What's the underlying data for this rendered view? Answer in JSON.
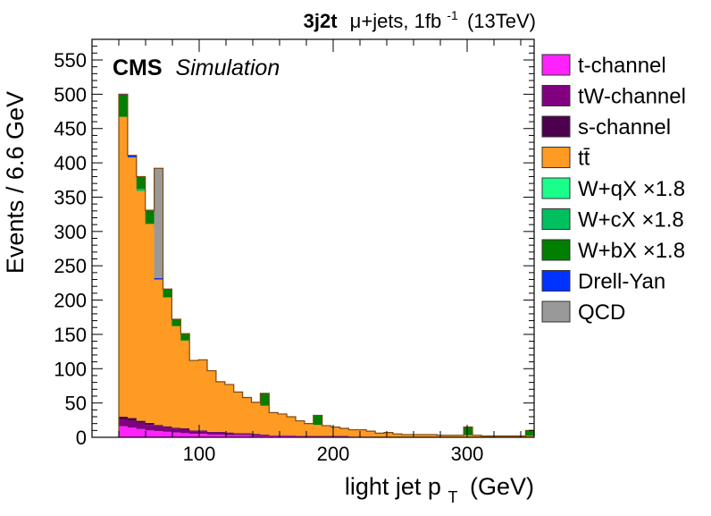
{
  "header": {
    "tag": "3j2t",
    "channel": "μ+jets, 1fb",
    "lumi_exp": "-1",
    "energy": "(13TeV)"
  },
  "cms": {
    "main": "CMS",
    "sub": "Simulation"
  },
  "chart_data": {
    "type": "bar",
    "stacked": true,
    "bin_width": 6.6,
    "bins": [
      [
        40,
        46.6
      ],
      [
        46.6,
        53.2
      ],
      [
        53.2,
        59.8
      ],
      [
        59.8,
        66.4
      ],
      [
        66.4,
        73
      ],
      [
        73,
        79.6
      ],
      [
        79.6,
        86.2
      ],
      [
        86.2,
        92.8
      ],
      [
        92.8,
        99.4
      ],
      [
        99.4,
        106
      ],
      [
        106,
        112.6
      ],
      [
        112.6,
        119.2
      ],
      [
        119.2,
        125.8
      ],
      [
        125.8,
        132.4
      ],
      [
        132.4,
        139
      ],
      [
        139,
        145.6
      ],
      [
        145.6,
        152.2
      ],
      [
        152.2,
        158.8
      ],
      [
        158.8,
        165.4
      ],
      [
        165.4,
        172
      ],
      [
        172,
        178.6
      ],
      [
        178.6,
        185.2
      ],
      [
        185.2,
        191.8
      ],
      [
        191.8,
        198.4
      ],
      [
        198.4,
        205
      ],
      [
        205,
        211.6
      ],
      [
        211.6,
        218.2
      ],
      [
        218.2,
        224.8
      ],
      [
        224.8,
        231.4
      ],
      [
        231.4,
        238
      ],
      [
        238,
        244.6
      ],
      [
        244.6,
        251.2
      ],
      [
        251.2,
        257.8
      ],
      [
        257.8,
        264.4
      ],
      [
        264.4,
        271
      ],
      [
        271,
        277.6
      ],
      [
        277.6,
        284.2
      ],
      [
        284.2,
        290.8
      ],
      [
        290.8,
        297.4
      ],
      [
        297.4,
        304
      ],
      [
        304,
        310.6
      ],
      [
        310.6,
        317.2
      ],
      [
        317.2,
        323.8
      ],
      [
        323.8,
        330.4
      ],
      [
        330.4,
        337
      ],
      [
        337,
        343.6
      ],
      [
        343.6,
        350.2
      ]
    ],
    "series": [
      {
        "name": "t-channel",
        "color": "#ff22ff",
        "values": [
          16,
          14,
          12,
          10,
          9,
          8,
          7,
          6,
          5,
          5,
          4,
          4,
          3,
          3,
          3,
          2,
          2,
          2,
          2,
          2,
          1,
          1,
          1,
          1,
          1,
          1,
          1,
          1,
          1,
          0,
          0,
          0,
          0,
          0,
          0,
          0,
          0,
          0,
          0,
          0,
          0,
          0,
          0,
          0,
          0,
          0,
          0
        ]
      },
      {
        "name": "tW-channel",
        "color": "#800080",
        "values": [
          10,
          10,
          9,
          8,
          7,
          6,
          5,
          5,
          4,
          4,
          3,
          3,
          3,
          2,
          2,
          2,
          2,
          1,
          1,
          1,
          1,
          1,
          1,
          1,
          1,
          1,
          0,
          0,
          0,
          0,
          0,
          0,
          0,
          0,
          0,
          0,
          0,
          0,
          0,
          0,
          0,
          0,
          0,
          0,
          0,
          0,
          0
        ]
      },
      {
        "name": "s-channel",
        "color": "#4d004d",
        "values": [
          4,
          4,
          3,
          3,
          2,
          2,
          2,
          2,
          1,
          1,
          1,
          1,
          1,
          1,
          1,
          1,
          0,
          0,
          0,
          0,
          0,
          0,
          0,
          0,
          0,
          0,
          0,
          0,
          0,
          0,
          0,
          0,
          0,
          0,
          0,
          0,
          0,
          0,
          0,
          0,
          0,
          0,
          0,
          0,
          0,
          0,
          0
        ]
      },
      {
        "name": "tt̄",
        "color": "#ff9a22",
        "values": [
          437,
          380,
          335,
          290,
          212,
          188,
          148,
          128,
          102,
          103,
          89,
          73,
          70,
          60,
          52,
          46,
          42,
          33,
          31,
          27,
          22,
          18,
          16,
          15,
          13,
          11,
          10,
          10,
          8,
          6,
          7,
          5,
          4,
          4,
          4,
          4,
          3,
          3,
          3,
          3,
          3,
          2,
          2,
          2,
          2,
          2,
          2
        ]
      },
      {
        "name": "W+qX ×1.8",
        "color": "#1aff8c",
        "values": [
          0,
          0,
          0,
          0,
          0,
          0,
          0,
          0,
          0,
          0,
          0,
          0,
          0,
          0,
          0,
          0,
          0,
          0,
          0,
          0,
          0,
          0,
          0,
          0,
          0,
          0,
          0,
          0,
          0,
          0,
          0,
          0,
          0,
          0,
          0,
          0,
          0,
          0,
          0,
          0,
          0,
          0,
          0,
          0,
          0,
          0,
          0
        ]
      },
      {
        "name": "W+cX ×1.8",
        "color": "#00bf5f",
        "values": [
          0,
          0,
          3,
          0,
          0,
          0,
          0,
          0,
          0,
          0,
          0,
          0,
          0,
          0,
          0,
          0,
          0,
          0,
          0,
          0,
          0,
          0,
          0,
          0,
          0,
          0,
          0,
          0,
          0,
          0,
          0,
          0,
          0,
          0,
          0,
          0,
          0,
          0,
          0,
          0,
          0,
          0,
          0,
          0,
          0,
          0,
          0
        ]
      },
      {
        "name": "W+bX ×1.8",
        "color": "#007f00",
        "values": [
          31,
          0,
          18,
          20,
          0,
          12,
          10,
          10,
          0,
          0,
          0,
          0,
          0,
          0,
          0,
          0,
          18,
          0,
          0,
          0,
          0,
          0,
          14,
          0,
          0,
          0,
          0,
          0,
          0,
          0,
          0,
          0,
          0,
          0,
          0,
          0,
          0,
          0,
          0,
          12,
          0,
          0,
          0,
          0,
          0,
          0,
          8
        ]
      },
      {
        "name": "Drell-Yan",
        "color": "#0033ff",
        "values": [
          2,
          3,
          0,
          0,
          2,
          0,
          0,
          0,
          0,
          0,
          0,
          0,
          0,
          0,
          0,
          0,
          0,
          0,
          0,
          0,
          0,
          0,
          0,
          0,
          0,
          0,
          0,
          0,
          0,
          0,
          0,
          0,
          0,
          0,
          0,
          0,
          0,
          0,
          0,
          0,
          0,
          0,
          0,
          0,
          0,
          0,
          0
        ]
      },
      {
        "name": "QCD",
        "color": "#999999",
        "values": [
          0,
          0,
          0,
          0,
          160,
          0,
          0,
          0,
          0,
          0,
          0,
          0,
          0,
          0,
          0,
          0,
          0,
          0,
          0,
          0,
          0,
          0,
          0,
          0,
          0,
          0,
          0,
          0,
          0,
          0,
          0,
          0,
          0,
          0,
          0,
          0,
          0,
          0,
          0,
          0,
          0,
          0,
          0,
          0,
          0,
          0,
          0
        ]
      }
    ],
    "xlabel": "light jet p",
    "xlabel_sub": "T",
    "xlabel_unit": "(GeV)",
    "ylabel": "Events / 6.6 GeV",
    "xlim": [
      20,
      350
    ],
    "ylim": [
      0,
      580
    ],
    "xticks": [
      100,
      200,
      300
    ],
    "yticks": [
      0,
      50,
      100,
      150,
      200,
      250,
      300,
      350,
      400,
      450,
      500,
      550
    ],
    "grid": false,
    "legend_position": "right"
  }
}
